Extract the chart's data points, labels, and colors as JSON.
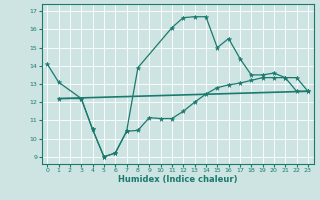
{
  "xlabel": "Humidex (Indice chaleur)",
  "xlim": [
    -0.5,
    23.5
  ],
  "ylim": [
    8.6,
    17.4
  ],
  "xticks": [
    0,
    1,
    2,
    3,
    4,
    5,
    6,
    7,
    8,
    9,
    10,
    11,
    12,
    13,
    14,
    15,
    16,
    17,
    18,
    19,
    20,
    21,
    22,
    23
  ],
  "yticks": [
    9,
    10,
    11,
    12,
    13,
    14,
    15,
    16,
    17
  ],
  "background_color": "#cde4e2",
  "line_color": "#1a7a6e",
  "line1_x": [
    0,
    1,
    3,
    4,
    5,
    6,
    7,
    8,
    11,
    12,
    13,
    14,
    15,
    16,
    17,
    18,
    19,
    20,
    21,
    22,
    23
  ],
  "line1_y": [
    14.1,
    13.1,
    12.2,
    10.5,
    9.0,
    9.2,
    10.4,
    13.9,
    16.1,
    16.65,
    16.7,
    16.7,
    15.0,
    15.5,
    14.4,
    13.5,
    13.5,
    13.6,
    13.35,
    13.35,
    12.6
  ],
  "line2_x": [
    1,
    3,
    4,
    5,
    6,
    7,
    8,
    9,
    10,
    11,
    12,
    13,
    14,
    15,
    16,
    17,
    18,
    19,
    20,
    21,
    22,
    23
  ],
  "line2_y": [
    12.2,
    12.2,
    10.5,
    9.0,
    9.2,
    10.4,
    10.45,
    11.15,
    11.1,
    11.1,
    11.5,
    12.0,
    12.45,
    12.8,
    12.95,
    13.05,
    13.2,
    13.35,
    13.35,
    13.35,
    12.6,
    12.6
  ],
  "line3_x": [
    1,
    23
  ],
  "line3_y": [
    12.2,
    12.6
  ]
}
